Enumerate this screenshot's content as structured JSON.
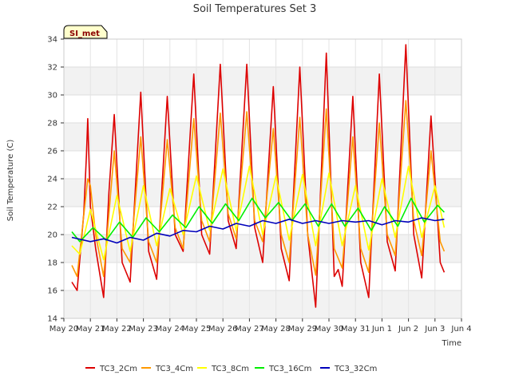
{
  "chart_data": {
    "type": "line",
    "title": "Soil Temperatures Set 3",
    "xlabel": "Time",
    "ylabel": "Soil Temperature (C)",
    "site_label": "SI_met",
    "xlim": [
      0,
      15
    ],
    "ylim": [
      14,
      34
    ],
    "yticks": [
      14,
      16,
      18,
      20,
      22,
      24,
      26,
      28,
      30,
      32,
      34
    ],
    "xticks": [
      {
        "v": 0,
        "label": "May 20"
      },
      {
        "v": 1,
        "label": "May 21"
      },
      {
        "v": 2,
        "label": "May 22"
      },
      {
        "v": 3,
        "label": "May 23"
      },
      {
        "v": 4,
        "label": "May 24"
      },
      {
        "v": 5,
        "label": "May 25"
      },
      {
        "v": 6,
        "label": "May 26"
      },
      {
        "v": 7,
        "label": "May 27"
      },
      {
        "v": 8,
        "label": "May 28"
      },
      {
        "v": 9,
        "label": "May 29"
      },
      {
        "v": 10,
        "label": "May 30"
      },
      {
        "v": 11,
        "label": "May 31"
      },
      {
        "v": 12,
        "label": "Jun 1"
      },
      {
        "v": 13,
        "label": "Jun 2"
      },
      {
        "v": 14,
        "label": "Jun 3"
      },
      {
        "v": 15,
        "label": "Jun 4"
      }
    ],
    "grid": true,
    "legend_placement": "bottom",
    "series": [
      {
        "name": "TC3_2Cm",
        "color": "#dd0000",
        "x": [
          0.3,
          0.5,
          0.75,
          0.85,
          0.9,
          1.0,
          1.2,
          1.5,
          1.7,
          1.9,
          2.2,
          2.5,
          2.9,
          3.2,
          3.5,
          3.9,
          4.2,
          4.5,
          4.9,
          5.2,
          5.5,
          5.9,
          6.2,
          6.5,
          6.9,
          7.2,
          7.5,
          7.9,
          8.2,
          8.5,
          8.9,
          9.2,
          9.5,
          9.9,
          10.2,
          10.35,
          10.5,
          10.9,
          11.2,
          11.5,
          11.9,
          12.2,
          12.5,
          12.9,
          13.2,
          13.5,
          13.85,
          14.2,
          14.35
        ],
        "y": [
          16.6,
          16,
          21.5,
          25.6,
          28.3,
          22,
          19,
          15.5,
          23,
          28.6,
          18,
          16.6,
          30.2,
          18.8,
          16.8,
          29.9,
          20,
          18.8,
          31.5,
          20,
          18.6,
          32.2,
          21,
          19,
          32.2,
          20.5,
          18,
          30.6,
          19,
          16.7,
          32,
          20,
          14.8,
          33,
          17,
          17.5,
          16.3,
          29.9,
          18,
          15.5,
          31.5,
          19.5,
          17.4,
          33.6,
          20,
          16.9,
          28.5,
          18,
          17.3
        ]
      },
      {
        "name": "TC3_4Cm",
        "color": "#ff9900",
        "x": [
          0.3,
          0.5,
          0.9,
          1.0,
          1.2,
          1.5,
          1.9,
          2.2,
          2.5,
          2.9,
          3.2,
          3.5,
          3.9,
          4.2,
          4.5,
          4.9,
          5.2,
          5.5,
          5.9,
          6.2,
          6.5,
          6.9,
          7.2,
          7.5,
          7.9,
          8.2,
          8.5,
          8.9,
          9.2,
          9.5,
          9.9,
          10.2,
          10.5,
          10.9,
          11.2,
          11.5,
          11.9,
          12.2,
          12.5,
          12.9,
          13.2,
          13.5,
          13.85,
          14.2,
          14.35
        ],
        "y": [
          17.8,
          17,
          24,
          23.5,
          20,
          17,
          26,
          19,
          18,
          27,
          19.5,
          18,
          26.8,
          20.5,
          19,
          28.3,
          21,
          19.5,
          28.7,
          21.5,
          19.7,
          28.8,
          21,
          19.5,
          27.6,
          20,
          18,
          28.4,
          20,
          17.1,
          29,
          19,
          17.6,
          27,
          19,
          17.3,
          28,
          20,
          18.5,
          29.6,
          21,
          18.5,
          26,
          19.5,
          18.8
        ]
      },
      {
        "name": "TC3_8Cm",
        "color": "#ffff00",
        "x": [
          0.3,
          0.6,
          1.0,
          1.5,
          2.0,
          2.5,
          3.0,
          3.5,
          4.0,
          4.5,
          5.0,
          5.5,
          6.0,
          6.5,
          7.0,
          7.5,
          8.0,
          8.5,
          9.0,
          9.5,
          10.0,
          10.5,
          11.0,
          11.5,
          12.0,
          12.5,
          13.0,
          13.5,
          14.0,
          14.35
        ],
        "y": [
          19.2,
          18.6,
          21.8,
          18.2,
          22.8,
          18.8,
          23.5,
          19.2,
          23.3,
          20,
          24.2,
          20.3,
          24.7,
          20.3,
          24.9,
          20,
          24.2,
          19.6,
          24.3,
          19.2,
          24.4,
          19.2,
          23.5,
          18.9,
          24,
          19.8,
          24.9,
          19.8,
          23.5,
          20.5
        ]
      },
      {
        "name": "TC3_16Cm",
        "color": "#00ee00",
        "x": [
          0.3,
          0.6,
          1.1,
          1.6,
          2.1,
          2.6,
          3.1,
          3.6,
          4.1,
          4.6,
          5.1,
          5.6,
          6.1,
          6.6,
          7.1,
          7.6,
          8.1,
          8.6,
          9.1,
          9.6,
          10.1,
          10.6,
          11.1,
          11.6,
          12.1,
          12.6,
          13.1,
          13.6,
          14.1,
          14.35
        ],
        "y": [
          20.2,
          19.5,
          20.5,
          19.6,
          20.9,
          19.8,
          21.2,
          20.2,
          21.4,
          20.5,
          22,
          20.8,
          22.2,
          21,
          22.6,
          21.2,
          22.3,
          21,
          22.2,
          20.6,
          22.2,
          20.6,
          21.9,
          20.3,
          22,
          20.6,
          22.6,
          20.9,
          22.1,
          21.6
        ]
      },
      {
        "name": "TC3_32Cm",
        "color": "#0000bb",
        "x": [
          0.3,
          1.0,
          1.5,
          2.0,
          2.5,
          3.0,
          3.5,
          4.0,
          4.5,
          5.0,
          5.5,
          6.0,
          6.5,
          7.0,
          7.5,
          8.0,
          8.5,
          9.0,
          9.5,
          10.0,
          10.5,
          11.0,
          11.5,
          12.0,
          12.5,
          13.0,
          13.5,
          14.0,
          14.35
        ],
        "y": [
          19.8,
          19.5,
          19.7,
          19.4,
          19.8,
          19.6,
          20.1,
          19.9,
          20.3,
          20.2,
          20.6,
          20.4,
          20.8,
          20.6,
          21,
          20.8,
          21.1,
          20.8,
          21,
          20.8,
          21,
          20.9,
          21,
          20.7,
          21,
          20.9,
          21.2,
          21,
          21.1
        ]
      }
    ]
  }
}
